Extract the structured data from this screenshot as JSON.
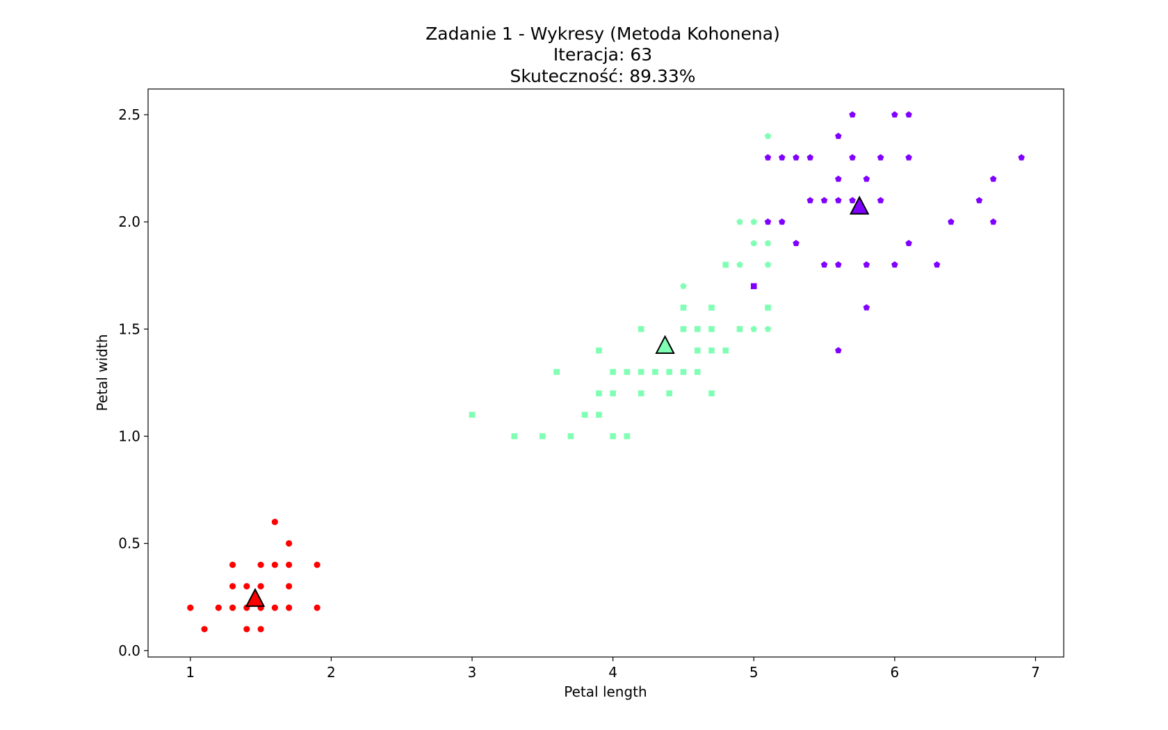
{
  "chart_data": {
    "type": "scatter",
    "title": "Zadanie 1 - Wykresy (Metoda Kohonena)",
    "subtitle_lines": [
      "Iteracja: 63",
      "Skuteczność: 89.33%"
    ],
    "xlabel": "Petal length",
    "ylabel": "Petal width",
    "xlim": [
      0.7,
      7.2
    ],
    "ylim": [
      -0.03,
      2.62
    ],
    "xticks": [
      1,
      2,
      3,
      4,
      5,
      6,
      7
    ],
    "yticks": [
      0.0,
      0.5,
      1.0,
      1.5,
      2.0,
      2.5
    ],
    "xtick_labels": [
      "1",
      "2",
      "3",
      "4",
      "5",
      "6",
      "7"
    ],
    "ytick_labels": [
      "0.0",
      "0.5",
      "1.0",
      "1.5",
      "2.0",
      "2.5"
    ],
    "grid": false,
    "legend": "none",
    "clusters": [
      {
        "color": "#ff0000",
        "centroid": [
          1.46,
          0.24
        ]
      },
      {
        "color": "#80ffb4",
        "centroid": [
          4.37,
          1.42
        ]
      },
      {
        "color": "#8000ff",
        "centroid": [
          5.75,
          2.07
        ]
      }
    ],
    "series": [
      {
        "marker": "circle",
        "points": [
          [
            1.0,
            0.2
          ],
          [
            1.1,
            0.1
          ],
          [
            1.2,
            0.2
          ],
          [
            1.3,
            0.2
          ],
          [
            1.3,
            0.3
          ],
          [
            1.3,
            0.4
          ],
          [
            1.4,
            0.1
          ],
          [
            1.4,
            0.2
          ],
          [
            1.4,
            0.3
          ],
          [
            1.5,
            0.1
          ],
          [
            1.5,
            0.2
          ],
          [
            1.5,
            0.3
          ],
          [
            1.5,
            0.4
          ],
          [
            1.6,
            0.2
          ],
          [
            1.6,
            0.4
          ],
          [
            1.6,
            0.6
          ],
          [
            1.7,
            0.2
          ],
          [
            1.7,
            0.3
          ],
          [
            1.7,
            0.4
          ],
          [
            1.7,
            0.5
          ],
          [
            1.9,
            0.2
          ],
          [
            1.9,
            0.4
          ]
        ],
        "colors": "all-cluster-0"
      },
      {
        "marker": "square",
        "points": [
          [
            3.0,
            1.1
          ],
          [
            3.3,
            1.0
          ],
          [
            3.5,
            1.0
          ],
          [
            3.6,
            1.3
          ],
          [
            3.7,
            1.0
          ],
          [
            3.8,
            1.1
          ],
          [
            3.9,
            1.1
          ],
          [
            3.9,
            1.2
          ],
          [
            3.9,
            1.4
          ],
          [
            4.0,
            1.0
          ],
          [
            4.0,
            1.2
          ],
          [
            4.0,
            1.3
          ],
          [
            4.1,
            1.0
          ],
          [
            4.1,
            1.3
          ],
          [
            4.2,
            1.2
          ],
          [
            4.2,
            1.3
          ],
          [
            4.2,
            1.5
          ],
          [
            4.3,
            1.3
          ],
          [
            4.4,
            1.2
          ],
          [
            4.4,
            1.3
          ],
          [
            4.4,
            1.4
          ],
          [
            4.5,
            1.3
          ],
          [
            4.5,
            1.5
          ],
          [
            4.5,
            1.6
          ],
          [
            4.6,
            1.3
          ],
          [
            4.6,
            1.4
          ],
          [
            4.6,
            1.5
          ],
          [
            4.7,
            1.2
          ],
          [
            4.7,
            1.4
          ],
          [
            4.7,
            1.5
          ],
          [
            4.7,
            1.6
          ],
          [
            4.8,
            1.4
          ],
          [
            4.8,
            1.8
          ],
          [
            4.9,
            1.5
          ],
          [
            5.0,
            1.7
          ],
          [
            5.1,
            1.6
          ]
        ],
        "point_clusters": [
          1,
          1,
          1,
          1,
          1,
          1,
          1,
          1,
          1,
          1,
          1,
          1,
          1,
          1,
          1,
          1,
          1,
          1,
          1,
          1,
          1,
          1,
          1,
          1,
          1,
          1,
          1,
          1,
          1,
          1,
          1,
          1,
          1,
          1,
          2,
          1
        ]
      },
      {
        "marker": "pentagon",
        "points": [
          [
            4.5,
            1.7
          ],
          [
            4.9,
            1.8
          ],
          [
            4.9,
            2.0
          ],
          [
            5.0,
            1.5
          ],
          [
            5.0,
            1.9
          ],
          [
            5.0,
            2.0
          ],
          [
            5.1,
            1.5
          ],
          [
            5.1,
            1.8
          ],
          [
            5.1,
            1.9
          ],
          [
            5.1,
            2.4
          ],
          [
            5.1,
            2.0
          ],
          [
            5.1,
            2.3
          ],
          [
            5.2,
            2.0
          ],
          [
            5.2,
            2.3
          ],
          [
            5.3,
            1.9
          ],
          [
            5.3,
            2.3
          ],
          [
            5.4,
            2.1
          ],
          [
            5.4,
            2.3
          ],
          [
            5.5,
            1.8
          ],
          [
            5.5,
            2.1
          ],
          [
            5.6,
            1.4
          ],
          [
            5.6,
            1.8
          ],
          [
            5.6,
            2.1
          ],
          [
            5.6,
            2.2
          ],
          [
            5.6,
            2.4
          ],
          [
            5.7,
            2.1
          ],
          [
            5.7,
            2.3
          ],
          [
            5.7,
            2.5
          ],
          [
            5.8,
            1.6
          ],
          [
            5.8,
            1.8
          ],
          [
            5.8,
            2.2
          ],
          [
            5.9,
            2.1
          ],
          [
            5.9,
            2.3
          ],
          [
            6.0,
            1.8
          ],
          [
            6.0,
            2.5
          ],
          [
            6.1,
            1.9
          ],
          [
            6.1,
            2.3
          ],
          [
            6.1,
            2.5
          ],
          [
            6.3,
            1.8
          ],
          [
            6.4,
            2.0
          ],
          [
            6.6,
            2.1
          ],
          [
            6.7,
            2.0
          ],
          [
            6.7,
            2.2
          ],
          [
            6.9,
            2.3
          ]
        ],
        "point_clusters": [
          1,
          1,
          1,
          1,
          1,
          1,
          1,
          1,
          1,
          1,
          2,
          2,
          2,
          2,
          2,
          2,
          2,
          2,
          2,
          2,
          2,
          2,
          2,
          2,
          2,
          2,
          2,
          2,
          2,
          2,
          2,
          2,
          2,
          2,
          2,
          2,
          2,
          2,
          2,
          2,
          2,
          2,
          2,
          2
        ]
      }
    ]
  }
}
